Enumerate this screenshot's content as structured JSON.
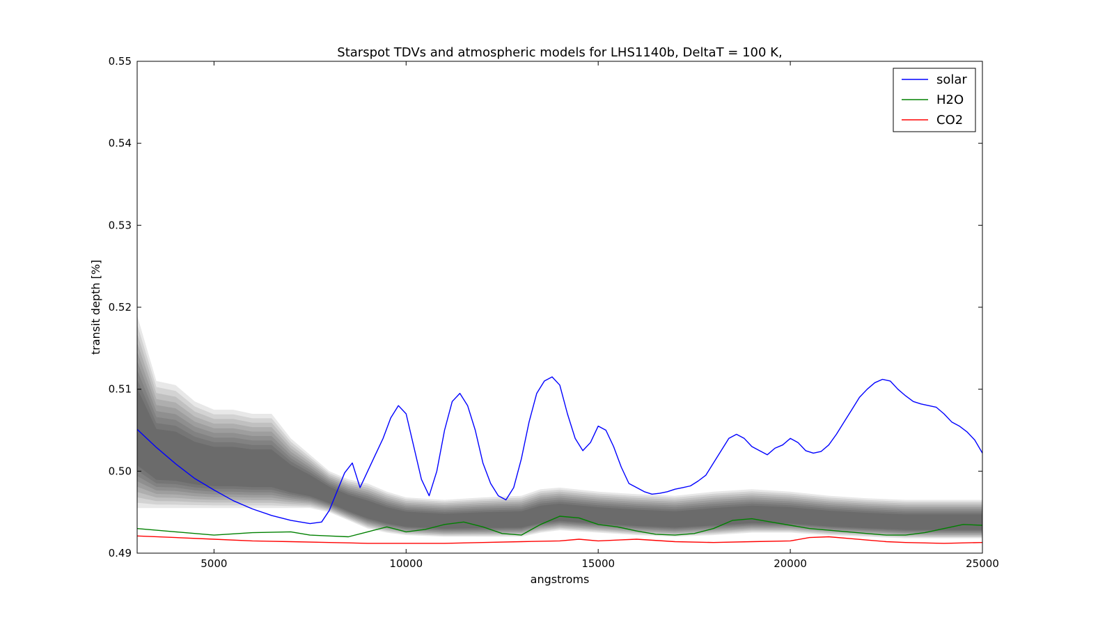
{
  "chart_data": {
    "type": "line",
    "title": "Starspot TDVs and atmospheric models for LHS1140b, DeltaT = 100 K,",
    "xlabel": "angstroms",
    "ylabel": "transit depth [%]",
    "xlim": [
      3000,
      25000
    ],
    "ylim": [
      0.49,
      0.55
    ],
    "xticks": [
      5000,
      10000,
      15000,
      20000,
      25000
    ],
    "xtick_labels": [
      "5000",
      "10000",
      "15000",
      "20000",
      "25000"
    ],
    "yticks": [
      0.49,
      0.5,
      0.51,
      0.52,
      0.53,
      0.54,
      0.55
    ],
    "ytick_labels": [
      "0.49",
      "0.50",
      "0.51",
      "0.52",
      "0.53",
      "0.54",
      "0.55"
    ],
    "grid": false,
    "legend": {
      "placement": "top-right"
    },
    "series": [
      {
        "name": "solar",
        "color": "#0000ff",
        "x": [
          3000,
          3500,
          4000,
          4500,
          5000,
          5500,
          6000,
          6500,
          7000,
          7500,
          7800,
          8000,
          8200,
          8400,
          8600,
          8800,
          9000,
          9200,
          9400,
          9600,
          9800,
          10000,
          10200,
          10400,
          10600,
          10800,
          11000,
          11200,
          11400,
          11600,
          11800,
          12000,
          12200,
          12400,
          12600,
          12800,
          13000,
          13200,
          13400,
          13600,
          13800,
          14000,
          14200,
          14400,
          14600,
          14800,
          15000,
          15200,
          15400,
          15600,
          15800,
          16000,
          16200,
          16400,
          16600,
          16800,
          17000,
          17200,
          17400,
          17600,
          17800,
          18000,
          18200,
          18400,
          18600,
          18800,
          19000,
          19200,
          19400,
          19600,
          19800,
          20000,
          20200,
          20400,
          20600,
          20800,
          21000,
          21200,
          21400,
          21600,
          21800,
          22000,
          22200,
          22400,
          22600,
          22800,
          23000,
          23200,
          23400,
          23600,
          23800,
          24000,
          24200,
          24400,
          24600,
          24800,
          25000
        ],
        "y": [
          0.5051,
          0.5029,
          0.5009,
          0.4991,
          0.4977,
          0.4964,
          0.4954,
          0.4946,
          0.494,
          0.4936,
          0.4938,
          0.4952,
          0.4975,
          0.4998,
          0.501,
          0.498,
          0.5,
          0.502,
          0.504,
          0.5065,
          0.508,
          0.507,
          0.503,
          0.499,
          0.497,
          0.5,
          0.505,
          0.5085,
          0.5095,
          0.508,
          0.505,
          0.501,
          0.4985,
          0.497,
          0.4965,
          0.498,
          0.5015,
          0.506,
          0.5095,
          0.511,
          0.5115,
          0.5105,
          0.507,
          0.504,
          0.5025,
          0.5035,
          0.5055,
          0.505,
          0.503,
          0.5005,
          0.4985,
          0.498,
          0.4975,
          0.4972,
          0.4973,
          0.4975,
          0.4978,
          0.498,
          0.4982,
          0.4988,
          0.4995,
          0.501,
          0.5025,
          0.504,
          0.5045,
          0.504,
          0.503,
          0.5025,
          0.502,
          0.5028,
          0.5032,
          0.504,
          0.5035,
          0.5025,
          0.5022,
          0.5024,
          0.5032,
          0.5045,
          0.506,
          0.5075,
          0.509,
          0.51,
          0.5108,
          0.5112,
          0.511,
          0.51,
          0.5092,
          0.5085,
          0.5082,
          0.508,
          0.5078,
          0.507,
          0.506,
          0.5055,
          0.5048,
          0.5038,
          0.5022
        ]
      },
      {
        "name": "H2O",
        "color": "#008000",
        "x": [
          3000,
          4000,
          5000,
          6000,
          7000,
          7500,
          8000,
          8500,
          9000,
          9500,
          10000,
          10500,
          11000,
          11500,
          12000,
          12500,
          13000,
          13500,
          14000,
          14500,
          15000,
          15500,
          16000,
          16500,
          17000,
          17500,
          18000,
          18500,
          19000,
          19500,
          20000,
          20500,
          21000,
          21500,
          22000,
          22500,
          23000,
          23500,
          24000,
          24500,
          25000
        ],
        "y": [
          0.493,
          0.4926,
          0.4922,
          0.4925,
          0.4926,
          0.4922,
          0.4921,
          0.492,
          0.4926,
          0.4932,
          0.4926,
          0.4929,
          0.4935,
          0.4938,
          0.4932,
          0.4924,
          0.4922,
          0.4935,
          0.4945,
          0.4943,
          0.4935,
          0.4932,
          0.4927,
          0.4923,
          0.4922,
          0.4924,
          0.493,
          0.494,
          0.4942,
          0.4938,
          0.4934,
          0.493,
          0.4928,
          0.4926,
          0.4924,
          0.4922,
          0.4922,
          0.4925,
          0.493,
          0.4935,
          0.4934
        ]
      },
      {
        "name": "CO2",
        "color": "#ff0000",
        "x": [
          3000,
          4000,
          5000,
          6000,
          7000,
          8000,
          9000,
          10000,
          11000,
          12000,
          13000,
          14000,
          14500,
          15000,
          15500,
          16000,
          17000,
          18000,
          19000,
          20000,
          20500,
          21000,
          21500,
          22000,
          22500,
          23000,
          24000,
          25000
        ],
        "y": [
          0.4921,
          0.4919,
          0.4917,
          0.4915,
          0.4914,
          0.4913,
          0.4912,
          0.4912,
          0.4912,
          0.4913,
          0.4914,
          0.4915,
          0.4917,
          0.4915,
          0.4916,
          0.4917,
          0.4914,
          0.4913,
          0.4914,
          0.4915,
          0.4919,
          0.492,
          0.4918,
          0.4916,
          0.4914,
          0.4913,
          0.4912,
          0.4913
        ]
      }
    ],
    "tdv_envelopes": {
      "color": "#000000",
      "x": [
        3000,
        3500,
        4000,
        4500,
        5000,
        5500,
        6000,
        6500,
        7000,
        7500,
        8000,
        8500,
        9000,
        9500,
        10000,
        11000,
        12000,
        13000,
        13500,
        14000,
        15000,
        16000,
        17000,
        18000,
        19000,
        20000,
        21000,
        22000,
        23000,
        24000,
        25000
      ],
      "low": [
        0.4955,
        0.4955,
        0.4955,
        0.4955,
        0.4955,
        0.4955,
        0.4955,
        0.4955,
        0.4955,
        0.4955,
        0.495,
        0.494,
        0.493,
        0.4925,
        0.4922,
        0.492,
        0.492,
        0.492,
        0.4925,
        0.4928,
        0.4925,
        0.4922,
        0.492,
        0.4922,
        0.4925,
        0.4925,
        0.4922,
        0.492,
        0.4918,
        0.4918,
        0.4918
      ],
      "high": [
        0.519,
        0.511,
        0.5105,
        0.5085,
        0.5075,
        0.5075,
        0.507,
        0.507,
        0.504,
        0.502,
        0.5,
        0.499,
        0.4985,
        0.4975,
        0.4968,
        0.4965,
        0.4968,
        0.497,
        0.4978,
        0.498,
        0.4975,
        0.4972,
        0.497,
        0.4975,
        0.4978,
        0.4975,
        0.497,
        0.4967,
        0.4965,
        0.4965,
        0.4965
      ]
    }
  }
}
